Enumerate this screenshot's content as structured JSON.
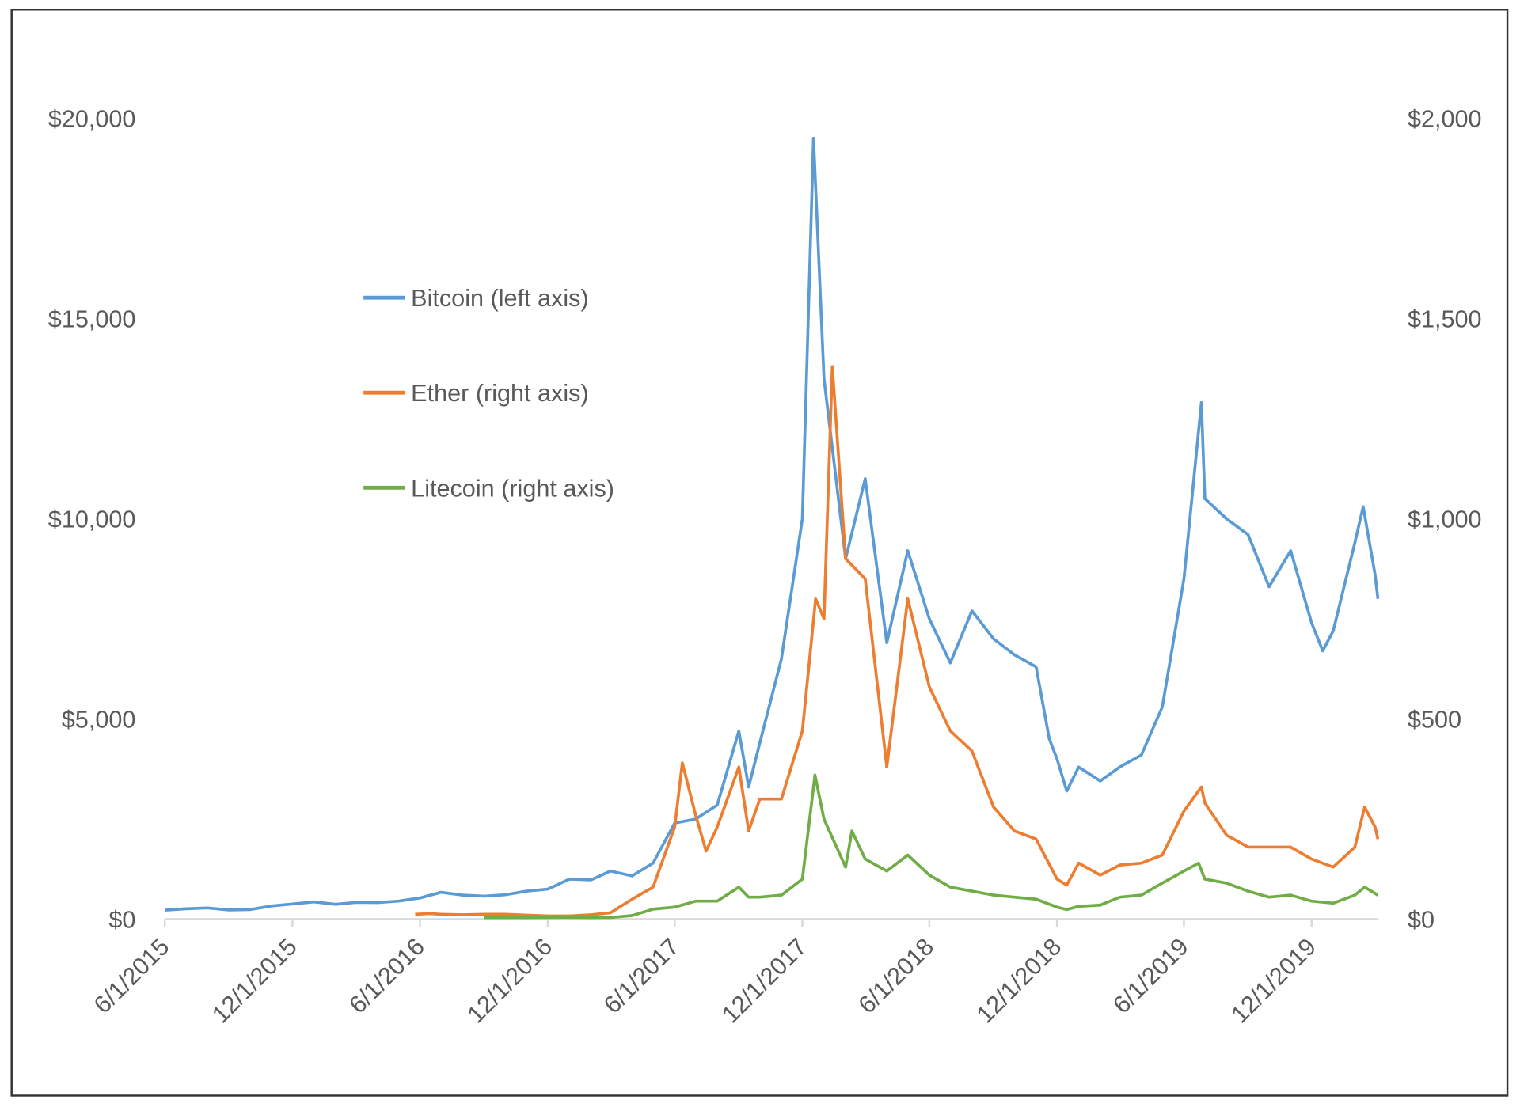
{
  "chart_data": {
    "type": "line",
    "title": "",
    "xlabel": "",
    "ylabel": "",
    "y2label": "",
    "grid": false,
    "legend_position": "center-left",
    "x_tick_labels": [
      "6/1/2015",
      "12/1/2015",
      "6/1/2016",
      "12/1/2016",
      "6/1/2017",
      "12/1/2017",
      "6/1/2018",
      "12/1/2018",
      "6/1/2019",
      "12/1/2019"
    ],
    "y_left": {
      "ticks": [
        "$0",
        "$5,000",
        "$10,000",
        "$15,000",
        "$20,000"
      ],
      "range": [
        0,
        20000
      ]
    },
    "y_right": {
      "ticks": [
        "$0",
        "$500",
        "$1,000",
        "$1,500",
        "$2,000"
      ],
      "range": [
        0,
        2000
      ]
    },
    "series": [
      {
        "name": "Bitcoin (left axis)",
        "axis": "left",
        "color": "#5B9BD5",
        "points": [
          [
            "2015-06-01",
            225
          ],
          [
            "2015-07-01",
            260
          ],
          [
            "2015-08-01",
            280
          ],
          [
            "2015-09-01",
            230
          ],
          [
            "2015-10-01",
            240
          ],
          [
            "2015-11-01",
            330
          ],
          [
            "2015-12-01",
            380
          ],
          [
            "2016-01-01",
            430
          ],
          [
            "2016-02-01",
            370
          ],
          [
            "2016-03-01",
            420
          ],
          [
            "2016-04-01",
            415
          ],
          [
            "2016-05-01",
            450
          ],
          [
            "2016-06-01",
            530
          ],
          [
            "2016-07-01",
            670
          ],
          [
            "2016-08-01",
            600
          ],
          [
            "2016-09-01",
            575
          ],
          [
            "2016-10-01",
            610
          ],
          [
            "2016-11-01",
            700
          ],
          [
            "2016-12-01",
            750
          ],
          [
            "2017-01-01",
            1000
          ],
          [
            "2017-02-01",
            980
          ],
          [
            "2017-03-01",
            1200
          ],
          [
            "2017-04-01",
            1080
          ],
          [
            "2017-05-01",
            1400
          ],
          [
            "2017-06-01",
            2400
          ],
          [
            "2017-07-01",
            2500
          ],
          [
            "2017-08-01",
            2850
          ],
          [
            "2017-09-01",
            4700
          ],
          [
            "2017-09-15",
            3300
          ],
          [
            "2017-10-01",
            4400
          ],
          [
            "2017-11-01",
            6500
          ],
          [
            "2017-12-01",
            10000
          ],
          [
            "2017-12-17",
            19500
          ],
          [
            "2018-01-01",
            13500
          ],
          [
            "2018-02-01",
            9000
          ],
          [
            "2018-03-01",
            11000
          ],
          [
            "2018-04-01",
            6900
          ],
          [
            "2018-05-01",
            9200
          ],
          [
            "2018-06-01",
            7500
          ],
          [
            "2018-07-01",
            6400
          ],
          [
            "2018-08-01",
            7700
          ],
          [
            "2018-09-01",
            7000
          ],
          [
            "2018-10-01",
            6600
          ],
          [
            "2018-11-01",
            6300
          ],
          [
            "2018-11-20",
            4500
          ],
          [
            "2018-12-01",
            4000
          ],
          [
            "2018-12-15",
            3200
          ],
          [
            "2019-01-01",
            3800
          ],
          [
            "2019-02-01",
            3450
          ],
          [
            "2019-03-01",
            3800
          ],
          [
            "2019-04-01",
            4100
          ],
          [
            "2019-05-01",
            5300
          ],
          [
            "2019-06-01",
            8500
          ],
          [
            "2019-06-26",
            12900
          ],
          [
            "2019-07-01",
            10500
          ],
          [
            "2019-08-01",
            10000
          ],
          [
            "2019-09-01",
            9600
          ],
          [
            "2019-10-01",
            8300
          ],
          [
            "2019-11-01",
            9200
          ],
          [
            "2019-12-01",
            7400
          ],
          [
            "2019-12-17",
            6700
          ],
          [
            "2020-01-01",
            7200
          ],
          [
            "2020-02-01",
            9400
          ],
          [
            "2020-02-13",
            10300
          ],
          [
            "2020-03-01",
            8600
          ],
          [
            "2020-03-05",
            8000
          ]
        ]
      },
      {
        "name": "Ether (right axis)",
        "axis": "right",
        "color": "#ED7D31",
        "points": [
          [
            "2016-05-25",
            12
          ],
          [
            "2016-06-15",
            14
          ],
          [
            "2016-07-01",
            12
          ],
          [
            "2016-08-01",
            11
          ],
          [
            "2016-09-01",
            12
          ],
          [
            "2016-10-01",
            12
          ],
          [
            "2016-11-01",
            10
          ],
          [
            "2016-12-01",
            8
          ],
          [
            "2017-01-01",
            8
          ],
          [
            "2017-02-01",
            11
          ],
          [
            "2017-03-01",
            16
          ],
          [
            "2017-04-01",
            50
          ],
          [
            "2017-05-01",
            80
          ],
          [
            "2017-06-01",
            230
          ],
          [
            "2017-06-12",
            390
          ],
          [
            "2017-07-01",
            260
          ],
          [
            "2017-07-16",
            170
          ],
          [
            "2017-08-01",
            230
          ],
          [
            "2017-09-01",
            380
          ],
          [
            "2017-09-15",
            220
          ],
          [
            "2017-10-01",
            300
          ],
          [
            "2017-11-01",
            300
          ],
          [
            "2017-12-01",
            470
          ],
          [
            "2017-12-20",
            800
          ],
          [
            "2018-01-01",
            750
          ],
          [
            "2018-01-13",
            1380
          ],
          [
            "2018-02-01",
            900
          ],
          [
            "2018-03-01",
            850
          ],
          [
            "2018-04-01",
            380
          ],
          [
            "2018-05-01",
            800
          ],
          [
            "2018-06-01",
            580
          ],
          [
            "2018-07-01",
            470
          ],
          [
            "2018-08-01",
            420
          ],
          [
            "2018-09-01",
            280
          ],
          [
            "2018-10-01",
            220
          ],
          [
            "2018-11-01",
            200
          ],
          [
            "2018-12-01",
            100
          ],
          [
            "2018-12-15",
            85
          ],
          [
            "2019-01-01",
            140
          ],
          [
            "2019-02-01",
            110
          ],
          [
            "2019-03-01",
            135
          ],
          [
            "2019-04-01",
            140
          ],
          [
            "2019-05-01",
            160
          ],
          [
            "2019-06-01",
            270
          ],
          [
            "2019-06-26",
            330
          ],
          [
            "2019-07-01",
            290
          ],
          [
            "2019-08-01",
            210
          ],
          [
            "2019-09-01",
            180
          ],
          [
            "2019-10-01",
            180
          ],
          [
            "2019-11-01",
            180
          ],
          [
            "2019-12-01",
            150
          ],
          [
            "2020-01-01",
            130
          ],
          [
            "2020-02-01",
            180
          ],
          [
            "2020-02-15",
            280
          ],
          [
            "2020-03-01",
            230
          ],
          [
            "2020-03-05",
            200
          ]
        ]
      },
      {
        "name": "Litecoin (right axis)",
        "axis": "right",
        "color": "#70AD47",
        "points": [
          [
            "2016-09-01",
            3.8
          ],
          [
            "2016-10-01",
            3.9
          ],
          [
            "2016-11-01",
            3.9
          ],
          [
            "2016-12-01",
            4.2
          ],
          [
            "2017-01-01",
            4.4
          ],
          [
            "2017-02-01",
            3.8
          ],
          [
            "2017-03-01",
            4
          ],
          [
            "2017-04-01",
            9
          ],
          [
            "2017-05-01",
            25
          ],
          [
            "2017-06-01",
            30
          ],
          [
            "2017-07-01",
            45
          ],
          [
            "2017-08-01",
            45
          ],
          [
            "2017-09-01",
            80
          ],
          [
            "2017-09-15",
            55
          ],
          [
            "2017-10-01",
            55
          ],
          [
            "2017-11-01",
            60
          ],
          [
            "2017-12-01",
            100
          ],
          [
            "2017-12-19",
            360
          ],
          [
            "2018-01-01",
            250
          ],
          [
            "2018-02-01",
            130
          ],
          [
            "2018-02-10",
            220
          ],
          [
            "2018-03-01",
            150
          ],
          [
            "2018-04-01",
            120
          ],
          [
            "2018-05-01",
            160
          ],
          [
            "2018-06-01",
            110
          ],
          [
            "2018-07-01",
            80
          ],
          [
            "2018-08-01",
            70
          ],
          [
            "2018-09-01",
            60
          ],
          [
            "2018-10-01",
            55
          ],
          [
            "2018-11-01",
            50
          ],
          [
            "2018-12-01",
            30
          ],
          [
            "2018-12-15",
            24
          ],
          [
            "2019-01-01",
            32
          ],
          [
            "2019-02-01",
            35
          ],
          [
            "2019-03-01",
            55
          ],
          [
            "2019-04-01",
            60
          ],
          [
            "2019-05-01",
            90
          ],
          [
            "2019-06-01",
            120
          ],
          [
            "2019-06-22",
            140
          ],
          [
            "2019-07-01",
            100
          ],
          [
            "2019-08-01",
            90
          ],
          [
            "2019-09-01",
            70
          ],
          [
            "2019-10-01",
            55
          ],
          [
            "2019-11-01",
            60
          ],
          [
            "2019-12-01",
            45
          ],
          [
            "2020-01-01",
            40
          ],
          [
            "2020-02-01",
            60
          ],
          [
            "2020-02-15",
            80
          ],
          [
            "2020-03-05",
            60
          ]
        ]
      }
    ]
  }
}
